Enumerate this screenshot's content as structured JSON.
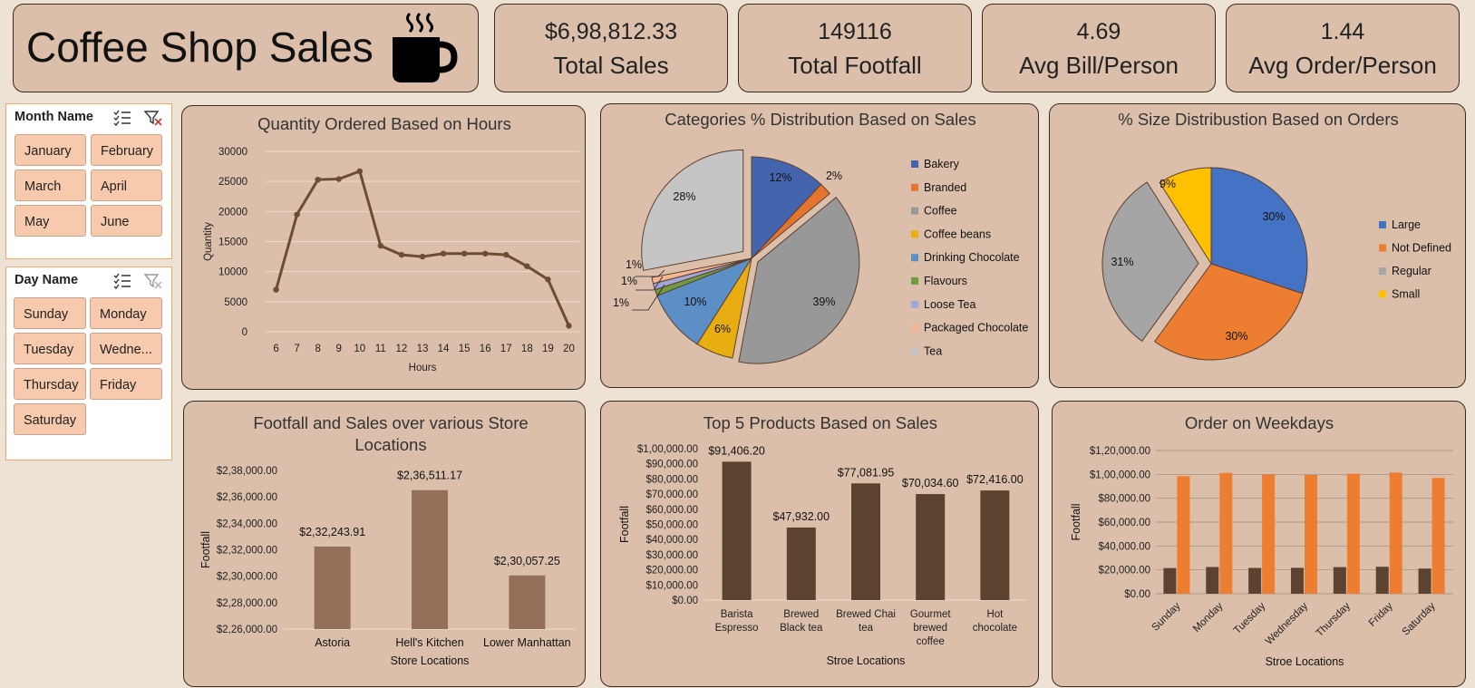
{
  "header": {
    "title": "Coffee Shop Sales",
    "icon": "coffee-cup-icon"
  },
  "kpis": [
    {
      "value": "$6,98,812.33",
      "label": "Total Sales"
    },
    {
      "value": "149116",
      "label": "Total Footfall"
    },
    {
      "value": "4.69",
      "label": "Avg Bill/Person"
    },
    {
      "value": "1.44",
      "label": "Avg Order/Person"
    }
  ],
  "month_slicer": {
    "title": "Month Name",
    "items": [
      "January",
      "February",
      "March",
      "April",
      "May",
      "June"
    ]
  },
  "day_slicer": {
    "title": "Day Name",
    "items": [
      "Sunday",
      "Monday",
      "Tuesday",
      "Wedne...",
      "Thursday",
      "Friday",
      "Saturday"
    ]
  },
  "colors": {
    "background": "#ede2d3",
    "card": "#dbbfaa",
    "line": "#6b4c34",
    "bar_dark": "#5c4330",
    "bar_light": "#957058",
    "orange": "#ed7d31",
    "blue": "#4472c4",
    "gray": "#a5a5a5",
    "yellow": "#ffc000"
  },
  "chart_data": [
    {
      "type": "line",
      "title": "Quantity Ordered Based on Hours",
      "xlabel": "Hours",
      "ylabel": "Quantity",
      "x": [
        6,
        7,
        8,
        9,
        10,
        11,
        12,
        13,
        14,
        15,
        16,
        17,
        18,
        19,
        20
      ],
      "y": [
        7000,
        19500,
        25300,
        25400,
        26700,
        14300,
        12800,
        12500,
        13000,
        13000,
        13000,
        12800,
        10900,
        8700,
        1000
      ],
      "yticks": [
        "30000",
        "25000",
        "20000",
        "15000",
        "10000",
        "5000",
        "0"
      ],
      "ylim": [
        0,
        30000
      ]
    },
    {
      "type": "pie",
      "title": "Categories % Distribution Based on Sales",
      "legend": [
        "Bakery",
        "Branded",
        "Coffee",
        "Coffee beans",
        "Drinking Chocolate",
        "Flavours",
        "Loose Tea",
        "Packaged Chocolate",
        "Tea"
      ],
      "values": [
        12,
        2,
        39,
        6,
        10,
        1,
        1,
        1,
        28
      ],
      "labels": [
        "12%",
        "2%",
        "39%",
        "6%",
        "10%",
        "1%",
        "1%",
        "1%",
        "28%"
      ]
    },
    {
      "type": "pie",
      "title": "% Size Distribustion Based on Orders",
      "legend": [
        "Large",
        "Not Defined",
        "Regular",
        "Small"
      ],
      "values": [
        30,
        30,
        31,
        9
      ],
      "labels": [
        "30%",
        "30%",
        "31%",
        "9%"
      ]
    },
    {
      "type": "bar",
      "title": "Footfall and Sales over various Store Locations",
      "xlabel": "Store Locations",
      "ylabel": "Footfall",
      "categories": [
        "Astoria",
        "Hell's Kitchen",
        "Lower Manhattan"
      ],
      "values": [
        232243.91,
        236511.17,
        230057.25
      ],
      "data_labels": [
        "$2,32,243.91",
        "$2,36,511.17",
        "$2,30,057.25"
      ],
      "yticks": [
        "$2,38,000.00",
        "$2,36,000.00",
        "$2,34,000.00",
        "$2,32,000.00",
        "$2,30,000.00",
        "$2,28,000.00",
        "$2,26,000.00"
      ],
      "ylim": [
        226000,
        238000
      ]
    },
    {
      "type": "bar",
      "title": "Top 5 Products Based on Sales",
      "xlabel": "Stroe Locations",
      "ylabel": "Footfall",
      "categories": [
        "Barista Espresso",
        "Brewed Black tea",
        "Brewed Chai tea",
        "Gourmet brewed coffee",
        "Hot chocolate"
      ],
      "category_lines": [
        [
          "Barista",
          "Espresso"
        ],
        [
          "Brewed",
          "Black tea"
        ],
        [
          "Brewed Chai",
          "tea"
        ],
        [
          "Gourmet",
          "brewed",
          "coffee"
        ],
        [
          "Hot",
          "chocolate"
        ]
      ],
      "values": [
        91406.2,
        47932.0,
        77081.95,
        70034.6,
        72416.0
      ],
      "data_labels": [
        "$91,406.20",
        "$47,932.00",
        "$77,081.95",
        "$70,034.60",
        "$72,416.00"
      ],
      "yticks": [
        "$1,00,000.00",
        "$90,000.00",
        "$80,000.00",
        "$70,000.00",
        "$60,000.00",
        "$50,000.00",
        "$40,000.00",
        "$30,000.00",
        "$20,000.00",
        "$10,000.00",
        "$0.00"
      ],
      "ylim": [
        0,
        100000
      ]
    },
    {
      "type": "bar",
      "title": "Order on Weekdays",
      "xlabel": "Stroe Locations",
      "ylabel": "Footfall",
      "categories": [
        "Sunday",
        "Monday",
        "Tuesday",
        "Wednesday",
        "Thursday",
        "Friday",
        "Saturday"
      ],
      "series": [
        {
          "values": [
            21500,
            22400,
            21600,
            21700,
            22300,
            22600,
            21100
          ]
        },
        {
          "values": [
            98500,
            101200,
            99800,
            99500,
            100500,
            101500,
            97000
          ]
        }
      ],
      "yticks": [
        "$1,20,000.00",
        "$1,00,000.00",
        "$80,000.00",
        "$60,000.00",
        "$40,000.00",
        "$20,000.00",
        "$0.00"
      ],
      "ylim": [
        0,
        120000
      ]
    }
  ]
}
